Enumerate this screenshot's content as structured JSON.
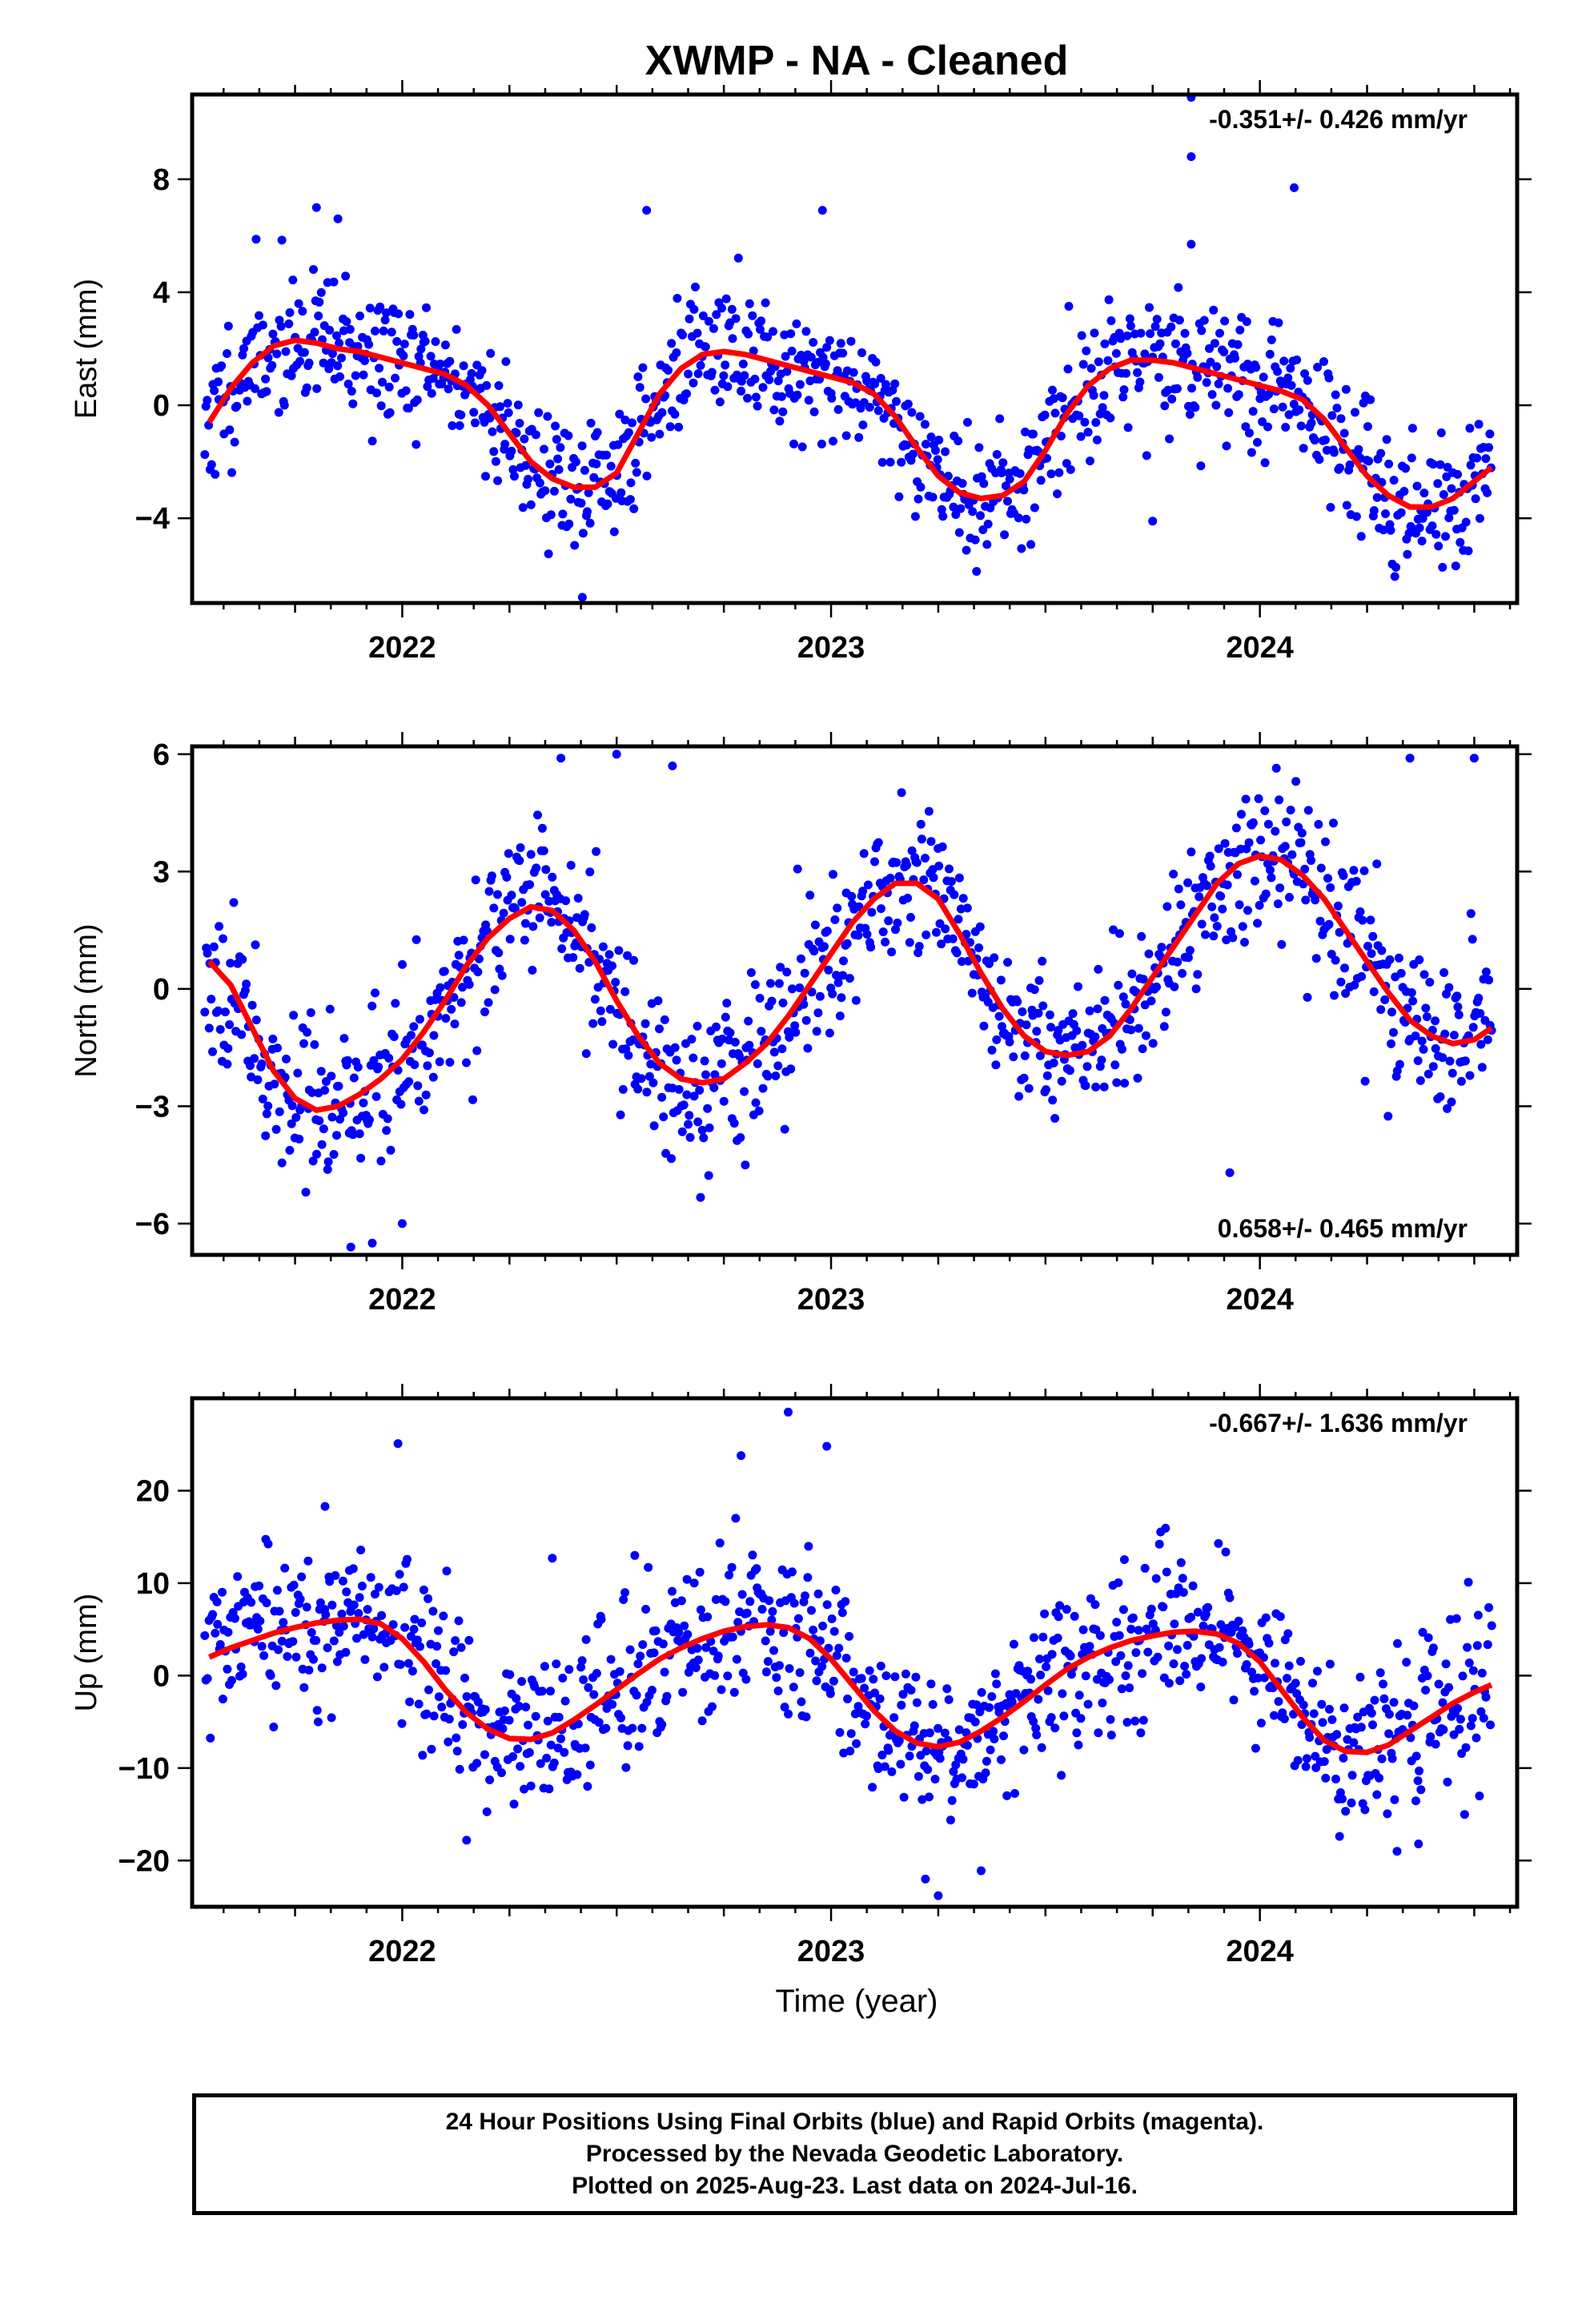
{
  "figure": {
    "title": "XWMP  - NA - Cleaned",
    "xlabel": "Time (year)",
    "footer": [
      "24 Hour Positions Using Final Orbits (blue) and Rapid Orbits (magenta).",
      "Processed by the Nevada Geodetic Laboratory.",
      "Plotted on 2025-Aug-23. Last data on 2024-Jul-16."
    ],
    "colors": {
      "points": "#0000ff",
      "fit": "#ff0000",
      "frame": "#000000"
    }
  },
  "chart_data": [
    {
      "type": "scatter",
      "component": "east",
      "ylabel": "East (mm)",
      "xlim": [
        2021.51,
        2024.6
      ],
      "ylim": [
        -7,
        11
      ],
      "xticks": [
        2022,
        2023,
        2024
      ],
      "yticks": [
        -4,
        0,
        4,
        8
      ],
      "rate_label": "-0.351+/- 0.426 mm/yr",
      "rate_position": "top-right",
      "x_start": 2021.54,
      "x_end": 2024.54,
      "n_points": 1000,
      "scatter_sd": 1.2,
      "seed": 11,
      "fit_x": [
        2021.55,
        2021.6,
        2021.65,
        2021.7,
        2021.75,
        2021.8,
        2021.85,
        2021.9,
        2021.95,
        2022.0,
        2022.05,
        2022.1,
        2022.15,
        2022.2,
        2022.25,
        2022.3,
        2022.35,
        2022.4,
        2022.45,
        2022.5,
        2022.55,
        2022.6,
        2022.65,
        2022.7,
        2022.75,
        2022.8,
        2022.85,
        2022.9,
        2022.95,
        2023.0,
        2023.05,
        2023.1,
        2023.15,
        2023.2,
        2023.25,
        2023.3,
        2023.35,
        2023.4,
        2023.45,
        2023.5,
        2023.55,
        2023.6,
        2023.65,
        2023.7,
        2023.75,
        2023.8,
        2023.85,
        2023.9,
        2023.95,
        2024.0,
        2024.05,
        2024.1,
        2024.15,
        2024.2,
        2024.25,
        2024.3,
        2024.35,
        2024.4,
        2024.45,
        2024.5,
        2024.54
      ],
      "fit_y": [
        -0.6,
        0.6,
        1.5,
        2.1,
        2.3,
        2.2,
        2.0,
        1.9,
        1.7,
        1.5,
        1.3,
        1.1,
        0.7,
        0.0,
        -1.0,
        -2.0,
        -2.6,
        -2.9,
        -2.9,
        -2.4,
        -1.0,
        0.4,
        1.3,
        1.8,
        1.9,
        1.8,
        1.6,
        1.4,
        1.2,
        1.0,
        0.8,
        0.4,
        -0.4,
        -1.5,
        -2.5,
        -3.1,
        -3.3,
        -3.2,
        -2.7,
        -1.6,
        -0.3,
        0.7,
        1.3,
        1.6,
        1.6,
        1.5,
        1.3,
        1.1,
        0.9,
        0.7,
        0.5,
        0.2,
        -0.5,
        -1.5,
        -2.5,
        -3.2,
        -3.6,
        -3.6,
        -3.3,
        -2.7,
        -2.2
      ],
      "outliers": [
        [
          2023.84,
          10.9
        ],
        [
          2023.84,
          8.8
        ],
        [
          2024.08,
          7.7
        ],
        [
          2021.8,
          7.0
        ],
        [
          2021.85,
          6.6
        ],
        [
          2022.57,
          6.9
        ],
        [
          2022.98,
          6.9
        ],
        [
          2023.84,
          5.7
        ],
        [
          2022.42,
          -6.8
        ],
        [
          2023.75,
          -4.1
        ]
      ]
    },
    {
      "type": "scatter",
      "component": "north",
      "ylabel": "North (mm)",
      "xlim": [
        2021.51,
        2024.6
      ],
      "ylim": [
        -6.8,
        6.2
      ],
      "xticks": [
        2022,
        2023,
        2024
      ],
      "yticks": [
        -6,
        -3,
        0,
        3,
        6
      ],
      "rate_label": "0.658+/- 0.465 mm/yr",
      "rate_position": "bottom-right",
      "x_start": 2021.54,
      "x_end": 2024.54,
      "n_points": 1000,
      "scatter_sd": 1.0,
      "seed": 23,
      "fit_x": [
        2021.55,
        2021.6,
        2021.65,
        2021.7,
        2021.75,
        2021.8,
        2021.85,
        2021.9,
        2021.95,
        2022.0,
        2022.05,
        2022.1,
        2022.15,
        2022.2,
        2022.25,
        2022.3,
        2022.35,
        2022.4,
        2022.45,
        2022.5,
        2022.55,
        2022.6,
        2022.65,
        2022.7,
        2022.75,
        2022.8,
        2022.85,
        2022.9,
        2022.95,
        2023.0,
        2023.05,
        2023.1,
        2023.15,
        2023.2,
        2023.25,
        2023.3,
        2023.35,
        2023.4,
        2023.45,
        2023.5,
        2023.55,
        2023.6,
        2023.65,
        2023.7,
        2023.75,
        2023.8,
        2023.85,
        2023.9,
        2023.95,
        2024.0,
        2024.05,
        2024.1,
        2024.15,
        2024.2,
        2024.25,
        2024.3,
        2024.35,
        2024.4,
        2024.45,
        2024.5,
        2024.54
      ],
      "fit_y": [
        0.7,
        0.1,
        -1.0,
        -2.1,
        -2.8,
        -3.1,
        -3.0,
        -2.7,
        -2.3,
        -1.8,
        -1.1,
        -0.3,
        0.6,
        1.3,
        1.8,
        2.1,
        2.0,
        1.5,
        0.7,
        -0.3,
        -1.2,
        -1.9,
        -2.3,
        -2.4,
        -2.3,
        -1.9,
        -1.4,
        -0.7,
        0.1,
        0.9,
        1.7,
        2.3,
        2.7,
        2.7,
        2.3,
        1.4,
        0.4,
        -0.5,
        -1.2,
        -1.6,
        -1.7,
        -1.6,
        -1.2,
        -0.5,
        0.3,
        1.1,
        1.9,
        2.7,
        3.2,
        3.4,
        3.3,
        2.9,
        2.3,
        1.5,
        0.7,
        -0.1,
        -0.8,
        -1.2,
        -1.4,
        -1.3,
        -1.0
      ],
      "outliers": [
        [
          2022.5,
          6.0
        ],
        [
          2022.37,
          5.9
        ],
        [
          2022.63,
          5.7
        ],
        [
          2024.35,
          5.9
        ],
        [
          2024.5,
          5.9
        ],
        [
          2021.88,
          -6.6
        ],
        [
          2021.93,
          -6.5
        ],
        [
          2022.0,
          -6.0
        ],
        [
          2022.8,
          -4.5
        ],
        [
          2023.93,
          -4.7
        ]
      ]
    },
    {
      "type": "scatter",
      "component": "up",
      "ylabel": "Up (mm)",
      "xlim": [
        2021.51,
        2024.6
      ],
      "ylim": [
        -25,
        30
      ],
      "xticks": [
        2022,
        2023,
        2024
      ],
      "yticks": [
        -20,
        -10,
        0,
        10,
        20
      ],
      "rate_label": "-0.667+/- 1.636 mm/yr",
      "rate_position": "top-right",
      "x_start": 2021.54,
      "x_end": 2024.54,
      "n_points": 1000,
      "scatter_sd": 4.3,
      "seed": 37,
      "fit_x": [
        2021.55,
        2021.6,
        2021.65,
        2021.7,
        2021.75,
        2021.8,
        2021.85,
        2021.9,
        2021.95,
        2022.0,
        2022.05,
        2022.1,
        2022.15,
        2022.2,
        2022.25,
        2022.3,
        2022.35,
        2022.4,
        2022.45,
        2022.5,
        2022.55,
        2022.6,
        2022.65,
        2022.7,
        2022.75,
        2022.8,
        2022.85,
        2022.9,
        2022.95,
        2023.0,
        2023.05,
        2023.1,
        2023.15,
        2023.2,
        2023.25,
        2023.3,
        2023.35,
        2023.4,
        2023.45,
        2023.5,
        2023.55,
        2023.6,
        2023.65,
        2023.7,
        2023.75,
        2023.8,
        2023.85,
        2023.9,
        2023.95,
        2024.0,
        2024.05,
        2024.1,
        2024.15,
        2024.2,
        2024.25,
        2024.3,
        2024.35,
        2024.4,
        2024.45,
        2024.5,
        2024.54
      ],
      "fit_y": [
        2.0,
        3.0,
        3.8,
        4.6,
        5.2,
        5.7,
        6.0,
        6.1,
        5.6,
        4.0,
        1.5,
        -1.5,
        -4.0,
        -5.8,
        -6.8,
        -6.9,
        -6.2,
        -4.8,
        -3.2,
        -1.5,
        0.2,
        1.8,
        3.0,
        4.0,
        4.8,
        5.3,
        5.5,
        5.2,
        4.0,
        1.8,
        -1.0,
        -3.8,
        -6.0,
        -7.3,
        -7.7,
        -7.2,
        -6.0,
        -4.5,
        -2.8,
        -1.0,
        0.7,
        2.0,
        3.0,
        3.8,
        4.3,
        4.7,
        4.8,
        4.5,
        3.5,
        1.5,
        -1.5,
        -4.5,
        -7.0,
        -8.2,
        -8.3,
        -7.5,
        -6.0,
        -4.5,
        -3.0,
        -1.8,
        -1.0
      ],
      "outliers": [
        [
          2022.9,
          28.5
        ],
        [
          2021.99,
          25.1
        ],
        [
          2022.99,
          24.8
        ],
        [
          2022.79,
          23.8
        ],
        [
          2021.82,
          18.3
        ],
        [
          2022.35,
          12.7
        ],
        [
          2023.25,
          -23.8
        ],
        [
          2023.22,
          -22.0
        ],
        [
          2023.35,
          -21.1
        ],
        [
          2022.15,
          -17.8
        ],
        [
          2024.32,
          -19.0
        ],
        [
          2024.37,
          -18.2
        ]
      ]
    }
  ]
}
